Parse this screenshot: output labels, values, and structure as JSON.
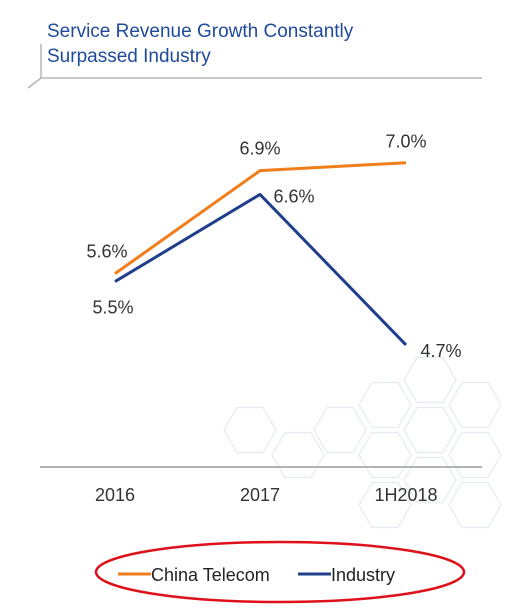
{
  "chart_data": {
    "type": "line",
    "title": "Service Revenue Growth Constantly Surpassed Industry",
    "title_lines": [
      "Service Revenue Growth Constantly",
      "Surpassed Industry"
    ],
    "categories": [
      "2016",
      "2017",
      "1H2018"
    ],
    "series": [
      {
        "name": "China Telecom",
        "values": [
          5.6,
          6.9,
          7.0
        ],
        "labels": [
          "5.6%",
          "6.9%",
          "7.0%"
        ],
        "color": "#f07d1a"
      },
      {
        "name": "Industry",
        "values": [
          5.5,
          6.6,
          4.7
        ],
        "labels": [
          "5.5%",
          "6.6%",
          "4.7%"
        ],
        "color": "#1f3f8c"
      }
    ],
    "ylim": [
      3.5,
      7.35
    ],
    "grid": false,
    "legend": "bottom",
    "legend_highlight_color": "#e0101a",
    "title_color": "#1f4a9c"
  }
}
